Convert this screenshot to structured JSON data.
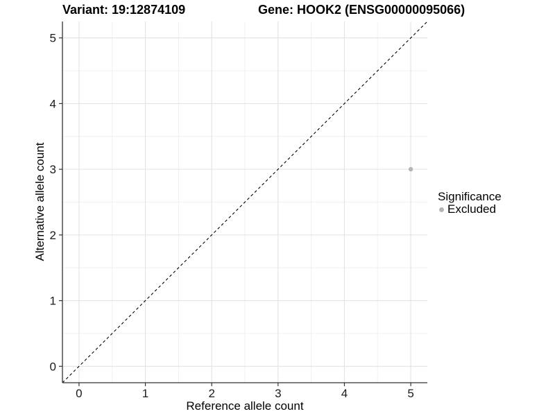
{
  "chart_data": {
    "type": "scatter",
    "titles": {
      "left": "Variant: 19:12874109",
      "right": "Gene: HOOK2 (ENSG00000095066)"
    },
    "xlabel": "Reference allele count",
    "ylabel": "Alternative allele count",
    "xlim": [
      -0.25,
      5.25
    ],
    "ylim": [
      -0.25,
      5.25
    ],
    "xticks": [
      0,
      1,
      2,
      3,
      4,
      5
    ],
    "yticks": [
      0,
      1,
      2,
      3,
      4,
      5
    ],
    "minor_grid_step": 0.5,
    "grid": "on",
    "reference_line": {
      "type": "identity",
      "from": [
        -0.25,
        -0.25
      ],
      "to": [
        5.25,
        5.25
      ],
      "style": "dashed",
      "color": "#000000"
    },
    "series": [
      {
        "name": "Excluded",
        "color": "#b5b5b5",
        "points": [
          {
            "x": 5,
            "y": 3
          }
        ]
      }
    ],
    "legend": {
      "title": "Significance",
      "position": "right",
      "entries": [
        {
          "label": "Excluded",
          "color": "#b5b5b5"
        }
      ]
    },
    "colors": {
      "background": "#ffffff",
      "axis_line": "#333333",
      "tick_text": "#1a1a1a",
      "grid_major": "#e3e3e3",
      "grid_minor": "#f0f0f0",
      "point": "#b5b5b5"
    }
  }
}
